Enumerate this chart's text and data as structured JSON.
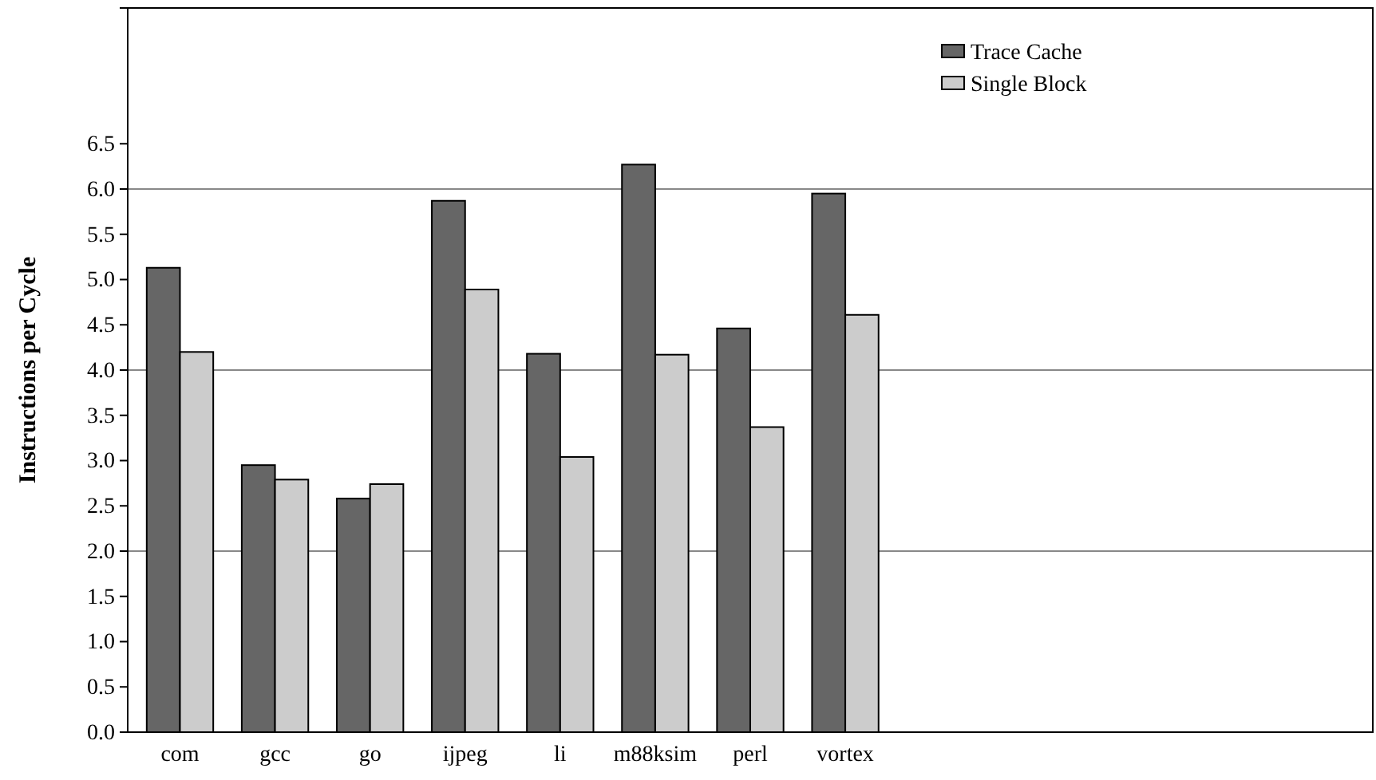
{
  "chart_data": {
    "type": "bar",
    "ylabel": "Instructions per Cycle",
    "categories": [
      "com",
      "gcc",
      "go",
      "ijpeg",
      "li",
      "m88ksim",
      "perl",
      "vortex",
      null,
      null,
      null,
      null,
      null
    ],
    "series": [
      {
        "name": "Trace Cache",
        "color": "#666666",
        "values": [
          5.13,
          2.95,
          2.58,
          5.87,
          4.18,
          6.27,
          4.46,
          5.95,
          null,
          null,
          null,
          null,
          null
        ]
      },
      {
        "name": "Single Block",
        "color": "#cccccc",
        "values": [
          4.2,
          2.79,
          2.74,
          4.89,
          3.04,
          4.17,
          3.37,
          4.61,
          null,
          null,
          null,
          null,
          null
        ]
      }
    ],
    "ylim": [
      0,
      8
    ],
    "yticks": [
      {
        "value": 0,
        "label": "0.0"
      },
      0.5,
      {
        "value": 1,
        "label": "1.0"
      },
      1.5,
      {
        "value": 2,
        "label": "2.0"
      },
      2.5,
      {
        "value": 3,
        "label": "3.0"
      },
      3.5,
      {
        "value": 4,
        "label": "4.0"
      },
      4.5,
      {
        "value": 5,
        "label": "5.0"
      },
      5.5,
      {
        "value": 6,
        "label": "6.0"
      },
      6.5
    ],
    "ref_lines": [
      {
        "axis": "y",
        "value": 2,
        "color": "#888888"
      },
      {
        "axis": "y",
        "value": 4,
        "color": "#888888"
      },
      {
        "axis": "y",
        "value": 6,
        "color": "#888888"
      }
    ],
    "legend": "top right"
  }
}
